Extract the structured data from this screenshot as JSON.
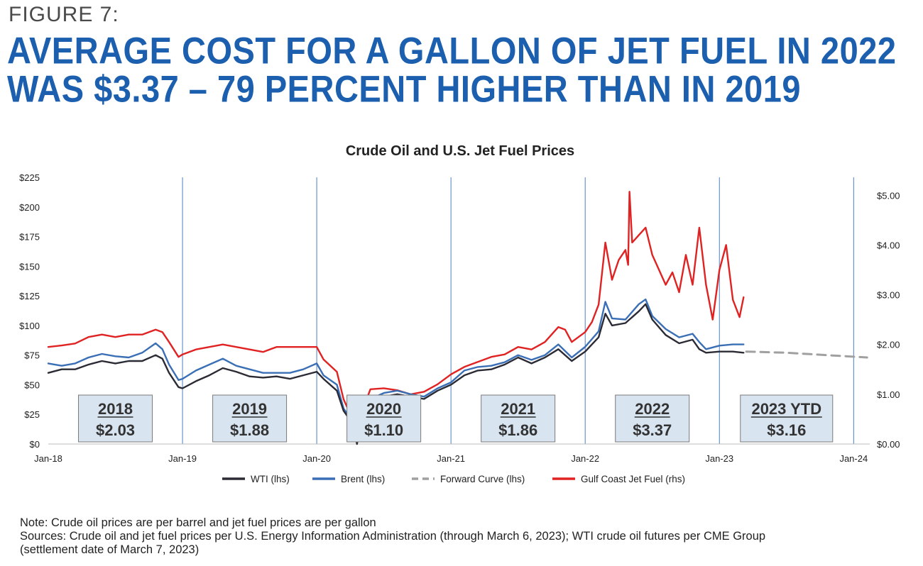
{
  "figure_label": "FIGURE 7:",
  "headline": {
    "line1": "AVERAGE COST FOR A GALLON OF JET FUEL IN 2022",
    "line2": "WAS $3.37 – 79 PERCENT HIGHER THAN IN 2019"
  },
  "notes": {
    "note": "Note: Crude oil prices are per barrel and jet fuel prices are per gallon",
    "sources_line1": "Sources: Crude oil and jet fuel prices per U.S. Energy Information Administration (through March 6, 2023); WTI crude oil futures per CME Group",
    "sources_line2": "(settlement date of March 7, 2023)"
  },
  "chart_data": {
    "type": "line",
    "title": "Crude Oil and U.S. Jet Fuel Prices",
    "x_range": [
      "2018-01",
      "2024-01"
    ],
    "x_ticks": [
      {
        "t": 2018.0,
        "label": "Jan-18"
      },
      {
        "t": 2019.0,
        "label": "Jan-19"
      },
      {
        "t": 2020.0,
        "label": "Jan-20"
      },
      {
        "t": 2021.0,
        "label": "Jan-21"
      },
      {
        "t": 2022.0,
        "label": "Jan-22"
      },
      {
        "t": 2023.0,
        "label": "Jan-23"
      },
      {
        "t": 2024.0,
        "label": "Jan-24"
      }
    ],
    "y_left": {
      "min": 0,
      "max": 225,
      "ticks": [
        "$0",
        "$25",
        "$50",
        "$75",
        "$100",
        "$125",
        "$150",
        "$175",
        "$200",
        "$225"
      ]
    },
    "y_right": {
      "min": 0,
      "max": 5.36,
      "ticks": [
        "$0.00",
        "$1.00",
        "$2.00",
        "$3.00",
        "$4.00",
        "$5.00"
      ]
    },
    "grid": "vertical lines at each January",
    "legend_placement": "bottom",
    "series": [
      {
        "name": "WTI (lhs)",
        "axis": "left",
        "color": "#2b2b35",
        "style": "solid",
        "points": [
          [
            2018.0,
            60
          ],
          [
            2018.1,
            63
          ],
          [
            2018.2,
            63
          ],
          [
            2018.3,
            67
          ],
          [
            2018.4,
            70
          ],
          [
            2018.5,
            68
          ],
          [
            2018.6,
            70
          ],
          [
            2018.7,
            70
          ],
          [
            2018.8,
            75
          ],
          [
            2018.85,
            72
          ],
          [
            2018.9,
            60
          ],
          [
            2018.97,
            48
          ],
          [
            2019.0,
            47
          ],
          [
            2019.1,
            53
          ],
          [
            2019.2,
            58
          ],
          [
            2019.3,
            64
          ],
          [
            2019.4,
            61
          ],
          [
            2019.5,
            57
          ],
          [
            2019.6,
            56
          ],
          [
            2019.7,
            57
          ],
          [
            2019.8,
            55
          ],
          [
            2019.9,
            58
          ],
          [
            2020.0,
            61
          ],
          [
            2020.05,
            55
          ],
          [
            2020.15,
            45
          ],
          [
            2020.2,
            28
          ],
          [
            2020.25,
            20
          ],
          [
            2020.28,
            10
          ],
          [
            2020.3,
            0
          ],
          [
            2020.33,
            18
          ],
          [
            2020.4,
            35
          ],
          [
            2020.5,
            40
          ],
          [
            2020.6,
            42
          ],
          [
            2020.7,
            40
          ],
          [
            2020.8,
            38
          ],
          [
            2020.9,
            45
          ],
          [
            2021.0,
            50
          ],
          [
            2021.1,
            58
          ],
          [
            2021.2,
            62
          ],
          [
            2021.3,
            63
          ],
          [
            2021.4,
            67
          ],
          [
            2021.5,
            73
          ],
          [
            2021.6,
            68
          ],
          [
            2021.7,
            73
          ],
          [
            2021.8,
            80
          ],
          [
            2021.9,
            70
          ],
          [
            2022.0,
            78
          ],
          [
            2022.1,
            90
          ],
          [
            2022.15,
            110
          ],
          [
            2022.2,
            100
          ],
          [
            2022.3,
            102
          ],
          [
            2022.4,
            112
          ],
          [
            2022.45,
            118
          ],
          [
            2022.5,
            105
          ],
          [
            2022.6,
            92
          ],
          [
            2022.7,
            85
          ],
          [
            2022.8,
            88
          ],
          [
            2022.85,
            80
          ],
          [
            2022.9,
            77
          ],
          [
            2023.0,
            78
          ],
          [
            2023.1,
            78
          ],
          [
            2023.18,
            77
          ]
        ]
      },
      {
        "name": "Brent (lhs)",
        "axis": "left",
        "color": "#3a6fb5",
        "style": "solid",
        "points": [
          [
            2018.0,
            68
          ],
          [
            2018.1,
            66
          ],
          [
            2018.2,
            68
          ],
          [
            2018.3,
            73
          ],
          [
            2018.4,
            76
          ],
          [
            2018.5,
            74
          ],
          [
            2018.6,
            73
          ],
          [
            2018.7,
            77
          ],
          [
            2018.8,
            85
          ],
          [
            2018.85,
            80
          ],
          [
            2018.9,
            67
          ],
          [
            2018.97,
            54
          ],
          [
            2019.0,
            55
          ],
          [
            2019.1,
            62
          ],
          [
            2019.2,
            67
          ],
          [
            2019.3,
            72
          ],
          [
            2019.4,
            66
          ],
          [
            2019.5,
            63
          ],
          [
            2019.6,
            60
          ],
          [
            2019.7,
            60
          ],
          [
            2019.8,
            60
          ],
          [
            2019.9,
            63
          ],
          [
            2020.0,
            68
          ],
          [
            2020.05,
            58
          ],
          [
            2020.15,
            50
          ],
          [
            2020.2,
            30
          ],
          [
            2020.25,
            22
          ],
          [
            2020.3,
            20
          ],
          [
            2020.35,
            30
          ],
          [
            2020.4,
            38
          ],
          [
            2020.5,
            43
          ],
          [
            2020.6,
            45
          ],
          [
            2020.7,
            42
          ],
          [
            2020.8,
            40
          ],
          [
            2020.9,
            47
          ],
          [
            2021.0,
            52
          ],
          [
            2021.1,
            62
          ],
          [
            2021.2,
            65
          ],
          [
            2021.3,
            66
          ],
          [
            2021.4,
            69
          ],
          [
            2021.5,
            75
          ],
          [
            2021.6,
            71
          ],
          [
            2021.7,
            75
          ],
          [
            2021.8,
            84
          ],
          [
            2021.9,
            73
          ],
          [
            2022.0,
            82
          ],
          [
            2022.1,
            95
          ],
          [
            2022.15,
            120
          ],
          [
            2022.2,
            106
          ],
          [
            2022.3,
            105
          ],
          [
            2022.4,
            118
          ],
          [
            2022.45,
            122
          ],
          [
            2022.5,
            108
          ],
          [
            2022.6,
            97
          ],
          [
            2022.7,
            90
          ],
          [
            2022.8,
            93
          ],
          [
            2022.85,
            86
          ],
          [
            2022.9,
            80
          ],
          [
            2023.0,
            83
          ],
          [
            2023.1,
            84
          ],
          [
            2023.18,
            84
          ]
        ]
      },
      {
        "name": "Forward Curve (lhs)",
        "axis": "left",
        "color": "#a0a0a0",
        "style": "dashed",
        "points": [
          [
            2023.2,
            78
          ],
          [
            2023.5,
            77
          ],
          [
            2023.8,
            75
          ],
          [
            2024.1,
            73
          ]
        ]
      },
      {
        "name": "Gulf Coast Jet Fuel (rhs)",
        "axis": "right",
        "color": "#e02222",
        "style": "solid",
        "points": [
          [
            2018.0,
            1.95
          ],
          [
            2018.1,
            1.98
          ],
          [
            2018.2,
            2.02
          ],
          [
            2018.3,
            2.15
          ],
          [
            2018.4,
            2.2
          ],
          [
            2018.5,
            2.15
          ],
          [
            2018.6,
            2.2
          ],
          [
            2018.7,
            2.2
          ],
          [
            2018.8,
            2.3
          ],
          [
            2018.85,
            2.25
          ],
          [
            2018.9,
            2.05
          ],
          [
            2018.97,
            1.75
          ],
          [
            2019.0,
            1.8
          ],
          [
            2019.1,
            1.9
          ],
          [
            2019.2,
            1.95
          ],
          [
            2019.3,
            2.0
          ],
          [
            2019.4,
            1.95
          ],
          [
            2019.5,
            1.9
          ],
          [
            2019.6,
            1.85
          ],
          [
            2019.7,
            1.95
          ],
          [
            2019.8,
            1.95
          ],
          [
            2019.9,
            1.95
          ],
          [
            2020.0,
            1.95
          ],
          [
            2020.05,
            1.7
          ],
          [
            2020.15,
            1.45
          ],
          [
            2020.2,
            0.9
          ],
          [
            2020.25,
            0.6
          ],
          [
            2020.3,
            0.5
          ],
          [
            2020.35,
            0.75
          ],
          [
            2020.4,
            1.1
          ],
          [
            2020.5,
            1.12
          ],
          [
            2020.6,
            1.08
          ],
          [
            2020.7,
            1.0
          ],
          [
            2020.8,
            1.05
          ],
          [
            2020.9,
            1.2
          ],
          [
            2021.0,
            1.4
          ],
          [
            2021.1,
            1.55
          ],
          [
            2021.2,
            1.65
          ],
          [
            2021.3,
            1.75
          ],
          [
            2021.4,
            1.8
          ],
          [
            2021.5,
            1.95
          ],
          [
            2021.6,
            1.9
          ],
          [
            2021.7,
            2.05
          ],
          [
            2021.8,
            2.35
          ],
          [
            2021.85,
            2.3
          ],
          [
            2021.9,
            2.05
          ],
          [
            2022.0,
            2.25
          ],
          [
            2022.05,
            2.45
          ],
          [
            2022.1,
            2.8
          ],
          [
            2022.15,
            4.05
          ],
          [
            2022.2,
            3.3
          ],
          [
            2022.25,
            3.7
          ],
          [
            2022.3,
            3.9
          ],
          [
            2022.32,
            3.6
          ],
          [
            2022.33,
            5.07
          ],
          [
            2022.35,
            4.05
          ],
          [
            2022.4,
            4.2
          ],
          [
            2022.45,
            4.35
          ],
          [
            2022.5,
            3.8
          ],
          [
            2022.55,
            3.5
          ],
          [
            2022.6,
            3.2
          ],
          [
            2022.65,
            3.45
          ],
          [
            2022.7,
            3.05
          ],
          [
            2022.75,
            3.8
          ],
          [
            2022.8,
            3.2
          ],
          [
            2022.85,
            4.35
          ],
          [
            2022.9,
            3.2
          ],
          [
            2022.95,
            2.5
          ],
          [
            2023.0,
            3.5
          ],
          [
            2023.05,
            4.0
          ],
          [
            2023.1,
            2.9
          ],
          [
            2023.15,
            2.55
          ],
          [
            2023.18,
            2.95
          ]
        ]
      }
    ],
    "year_boxes": [
      {
        "year": "2018",
        "price": "$2.03",
        "t": 2018.5
      },
      {
        "year": "2019",
        "price": "$1.88",
        "t": 2019.5
      },
      {
        "year": "2020",
        "price": "$1.10",
        "t": 2020.5
      },
      {
        "year": "2021",
        "price": "$1.86",
        "t": 2021.5
      },
      {
        "year": "2022",
        "price": "$3.37",
        "t": 2022.5
      },
      {
        "year": "2023 YTD",
        "price": "$3.16",
        "t": 2023.5
      }
    ]
  }
}
